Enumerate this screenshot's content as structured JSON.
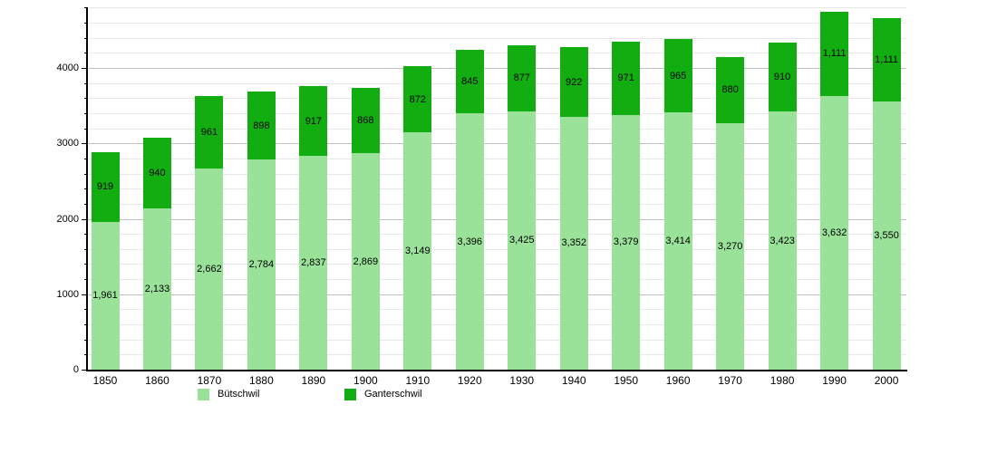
{
  "chart_data": {
    "type": "bar",
    "stacked": true,
    "title": "",
    "xlabel": "",
    "ylabel": "",
    "categories": [
      "1850",
      "1860",
      "1870",
      "1880",
      "1890",
      "1900",
      "1910",
      "1920",
      "1930",
      "1940",
      "1950",
      "1960",
      "1970",
      "1980",
      "1990",
      "2000"
    ],
    "series": [
      {
        "name": "Bütschwil",
        "color": "#9ae29a",
        "values": [
          1961,
          2133,
          2662,
          2784,
          2837,
          2869,
          3149,
          3396,
          3425,
          3352,
          3379,
          3414,
          3270,
          3423,
          3632,
          3550
        ]
      },
      {
        "name": "Ganterschwil",
        "color": "#11ad11",
        "values": [
          919,
          940,
          961,
          898,
          917,
          868,
          872,
          845,
          877,
          922,
          971,
          965,
          880,
          910,
          1111,
          1111
        ]
      }
    ],
    "ylim": [
      0,
      4800
    ],
    "yticks": [
      0,
      1000,
      2000,
      3000,
      4000
    ],
    "minor_tick_step": 200,
    "grid": true,
    "legend_position": "bottom",
    "value_labels": "inside-center, thousands separated by comma"
  }
}
